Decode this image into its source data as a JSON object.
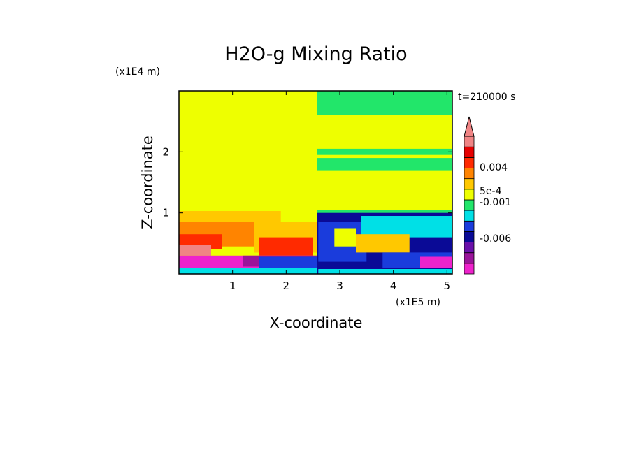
{
  "chart_data": {
    "type": "heatmap",
    "title": "H2O-g Mixing Ratio",
    "xlabel": "X-coordinate",
    "ylabel": "Z-coordinate",
    "x_multiplier": "(x1E5 m)",
    "y_multiplier": "(x1E4 m)",
    "time_label": "t=210000 s",
    "xlim": [
      0,
      5.1
    ],
    "ylim": [
      0,
      3.0
    ],
    "x_ticks": [
      1,
      2,
      3,
      4,
      5
    ],
    "y_ticks": [
      1,
      2
    ],
    "x_tick_labels": [
      "1",
      "2",
      "3",
      "4",
      "5"
    ],
    "y_tick_labels": [
      "1",
      "2"
    ],
    "colorbar": {
      "levels": [
        {
          "color": "#ee22cc"
        },
        {
          "color": "#9a149a"
        },
        {
          "color": "#6a10aa"
        },
        {
          "color": "#0a0a96"
        },
        {
          "color": "#1a3cdc"
        },
        {
          "color": "#00e0e6"
        },
        {
          "color": "#22e66a"
        },
        {
          "color": "#eeff00"
        },
        {
          "color": "#ffc800"
        },
        {
          "color": "#ff8400"
        },
        {
          "color": "#ff2a00"
        },
        {
          "color": "#e60000"
        },
        {
          "color": "#f08484"
        }
      ],
      "labels": [
        "0.004",
        "5e-4",
        "-0.001",
        "-0.006"
      ],
      "overflow_triangle": true
    },
    "regions": [
      {
        "color": "#eeff00",
        "x": [
          0,
          2.57
        ],
        "z": [
          0,
          3.0
        ]
      },
      {
        "color": "#22e66a",
        "x": [
          2.57,
          5.1
        ],
        "z": [
          0,
          3.0
        ]
      },
      {
        "color": "#eeff00",
        "x": [
          2.57,
          5.1
        ],
        "z": [
          1.05,
          1.95
        ]
      },
      {
        "color": "#eeff00",
        "x": [
          2.57,
          5.1
        ],
        "z": [
          2.05,
          2.6
        ]
      },
      {
        "color": "#22e66a",
        "x": [
          2.57,
          5.1
        ],
        "z": [
          1.7,
          1.9
        ]
      },
      {
        "color": "#ffc800",
        "x": [
          0,
          1.9
        ],
        "z": [
          0.5,
          1.03
        ]
      },
      {
        "color": "#ff8400",
        "x": [
          0,
          1.4
        ],
        "z": [
          0.45,
          0.85
        ]
      },
      {
        "color": "#ff2a00",
        "x": [
          0,
          0.8
        ],
        "z": [
          0.4,
          0.65
        ]
      },
      {
        "color": "#f08484",
        "x": [
          0,
          0.6
        ],
        "z": [
          0.3,
          0.48
        ]
      },
      {
        "color": "#ffc800",
        "x": [
          1.4,
          2.57
        ],
        "z": [
          0.35,
          0.85
        ]
      },
      {
        "color": "#ff2a00",
        "x": [
          1.5,
          2.5
        ],
        "z": [
          0.3,
          0.6
        ]
      },
      {
        "color": "#ee22cc",
        "x": [
          0,
          2.57
        ],
        "z": [
          0.1,
          0.3
        ]
      },
      {
        "color": "#9a149a",
        "x": [
          1.2,
          2.57
        ],
        "z": [
          0.12,
          0.3
        ]
      },
      {
        "color": "#1a3cdc",
        "x": [
          1.5,
          2.57
        ],
        "z": [
          0,
          0.28
        ]
      },
      {
        "color": "#00e0e6",
        "x": [
          0,
          2.57
        ],
        "z": [
          0,
          0.1
        ]
      },
      {
        "color": "#0a0a96",
        "x": [
          2.57,
          5.1
        ],
        "z": [
          0,
          1.0
        ]
      },
      {
        "color": "#1a3cdc",
        "x": [
          2.6,
          3.5
        ],
        "z": [
          0.2,
          0.85
        ]
      },
      {
        "color": "#00e0e6",
        "x": [
          3.4,
          5.1
        ],
        "z": [
          0.6,
          0.95
        ]
      },
      {
        "color": "#ffc800",
        "x": [
          3.3,
          4.3
        ],
        "z": [
          0.35,
          0.65
        ]
      },
      {
        "color": "#eeff00",
        "x": [
          2.9,
          3.3
        ],
        "z": [
          0.45,
          0.75
        ]
      },
      {
        "color": "#1a3cdc",
        "x": [
          3.8,
          5.1
        ],
        "z": [
          0.1,
          0.35
        ]
      },
      {
        "color": "#ee22cc",
        "x": [
          4.5,
          5.1
        ],
        "z": [
          0.1,
          0.28
        ]
      },
      {
        "color": "#00e0e6",
        "x": [
          2.6,
          5.1
        ],
        "z": [
          0,
          0.08
        ]
      }
    ]
  }
}
